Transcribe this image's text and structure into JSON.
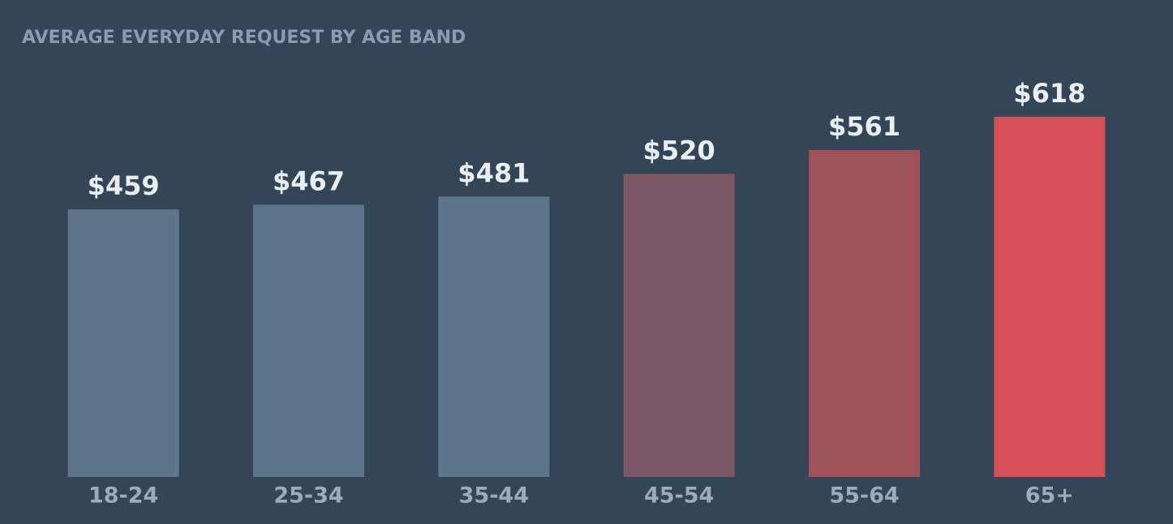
{
  "chart_data": {
    "type": "bar",
    "title": "AVERAGE EVERYDAY REQUEST BY AGE BAND",
    "categories": [
      "18-24",
      "25-34",
      "35-44",
      "45-54",
      "55-64",
      "65+"
    ],
    "values": [
      459,
      467,
      481,
      520,
      561,
      618
    ],
    "value_labels": [
      "$459",
      "$467",
      "$481",
      "$520",
      "$561",
      "$618"
    ],
    "colors": [
      "#5e7489",
      "#5e7489",
      "#5e7489",
      "#7b5664",
      "#9f525a",
      "#d45054"
    ],
    "ylim": [
      0,
      700
    ],
    "grid": false
  }
}
